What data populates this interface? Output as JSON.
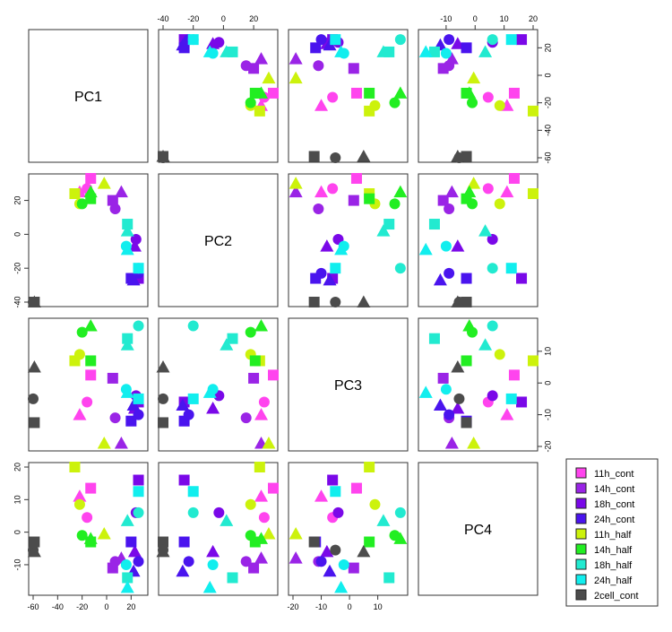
{
  "chart_data": {
    "type": "scatter",
    "title": "",
    "variables": [
      "PC1",
      "PC2",
      "PC3",
      "PC4"
    ],
    "ranges": {
      "PC1": [
        -60,
        30
      ],
      "PC2": [
        -40,
        33
      ],
      "PC3": [
        -20,
        19
      ],
      "PC4": [
        -18,
        20
      ]
    },
    "ticks": {
      "PC1": [
        "-60",
        "-40",
        "-20",
        "0",
        "20"
      ],
      "PC2": [
        "-40",
        "-20",
        "0",
        "20"
      ],
      "PC3": [
        "-20",
        "-10",
        "0",
        "10"
      ],
      "PC4": [
        "-10",
        "0",
        "10",
        "20"
      ]
    },
    "legend": {
      "position": "right",
      "entries": [
        {
          "label": "11h_cont",
          "color": "#ff44ee"
        },
        {
          "label": "14h_cont",
          "color": "#9a24e6"
        },
        {
          "label": "18h_cont",
          "color": "#7a08e8"
        },
        {
          "label": "24h_cont",
          "color": "#4a14ee"
        },
        {
          "label": "11h_half",
          "color": "#ccf20c"
        },
        {
          "label": "14h_half",
          "color": "#22ee22"
        },
        {
          "label": "18h_half",
          "color": "#22ead0"
        },
        {
          "label": "24h_half",
          "color": "#11eeee"
        },
        {
          "label": "2cell_cont",
          "color": "#4c4c4c"
        }
      ]
    },
    "series": [
      {
        "name": "11h_cont",
        "points": [
          {
            "shape": "square",
            "PC1": -13,
            "PC2": 33,
            "PC3": 2.5,
            "PC4": 13.5
          },
          {
            "shape": "circle",
            "PC1": -16,
            "PC2": 27,
            "PC3": -6,
            "PC4": 4.5
          },
          {
            "shape": "triangle",
            "PC1": -22,
            "PC2": 25,
            "PC3": -10,
            "PC4": 11
          }
        ]
      },
      {
        "name": "14h_cont",
        "points": [
          {
            "shape": "square",
            "PC1": 5,
            "PC2": 20,
            "PC3": 1.5,
            "PC4": -11
          },
          {
            "shape": "circle",
            "PC1": 7,
            "PC2": 15,
            "PC3": -11,
            "PC4": -9
          },
          {
            "shape": "triangle",
            "PC1": 12,
            "PC2": 25,
            "PC3": -19,
            "PC4": -8
          }
        ]
      },
      {
        "name": "18h_cont",
        "points": [
          {
            "shape": "square",
            "PC1": 26,
            "PC2": -26,
            "PC3": -6,
            "PC4": 16
          },
          {
            "shape": "circle",
            "PC1": 24,
            "PC2": -3,
            "PC3": -4,
            "PC4": 6
          },
          {
            "shape": "triangle",
            "PC1": 23,
            "PC2": -7,
            "PC3": -8,
            "PC4": -6
          }
        ]
      },
      {
        "name": "24h_cont",
        "points": [
          {
            "shape": "square",
            "PC1": 20,
            "PC2": -26,
            "PC3": -12,
            "PC4": -3
          },
          {
            "shape": "circle",
            "PC1": 26,
            "PC2": -23,
            "PC3": -10,
            "PC4": -9
          },
          {
            "shape": "triangle",
            "PC1": 22,
            "PC2": -27,
            "PC3": -7,
            "PC4": -12
          }
        ]
      },
      {
        "name": "11h_half",
        "points": [
          {
            "shape": "square",
            "PC1": -26,
            "PC2": 24,
            "PC3": 7,
            "PC4": 20
          },
          {
            "shape": "circle",
            "PC1": -22,
            "PC2": 18,
            "PC3": 9,
            "PC4": 8.5
          },
          {
            "shape": "triangle",
            "PC1": -2,
            "PC2": 30,
            "PC3": -19,
            "PC4": -0.5
          }
        ]
      },
      {
        "name": "14h_half",
        "points": [
          {
            "shape": "square",
            "PC1": -13,
            "PC2": 21,
            "PC3": 7,
            "PC4": -3
          },
          {
            "shape": "circle",
            "PC1": -20,
            "PC2": 18,
            "PC3": 16,
            "PC4": -1
          },
          {
            "shape": "triangle",
            "PC1": -13,
            "PC2": 25,
            "PC3": 18,
            "PC4": -2
          }
        ]
      },
      {
        "name": "18h_half",
        "points": [
          {
            "shape": "square",
            "PC1": 17,
            "PC2": 6,
            "PC3": 14,
            "PC4": -14
          },
          {
            "shape": "circle",
            "PC1": 26,
            "PC2": -20,
            "PC3": 18,
            "PC4": 6
          },
          {
            "shape": "triangle",
            "PC1": 17,
            "PC2": 2,
            "PC3": 12,
            "PC4": 3.5
          }
        ]
      },
      {
        "name": "24h_half",
        "points": [
          {
            "shape": "square",
            "PC1": 26,
            "PC2": -20,
            "PC3": -5,
            "PC4": 12.5
          },
          {
            "shape": "circle",
            "PC1": 16,
            "PC2": -7,
            "PC3": -2,
            "PC4": -10
          },
          {
            "shape": "triangle",
            "PC1": 17,
            "PC2": -9,
            "PC3": -3,
            "PC4": -17
          }
        ]
      },
      {
        "name": "2cell_cont",
        "points": [
          {
            "shape": "square",
            "PC1": -59,
            "PC2": -40,
            "PC3": -12.5,
            "PC4": -3
          },
          {
            "shape": "circle",
            "PC1": -60,
            "PC2": -40,
            "PC3": -5,
            "PC4": -5.5
          },
          {
            "shape": "triangle",
            "PC1": -59,
            "PC2": -40,
            "PC3": 5,
            "PC4": -6
          }
        ]
      }
    ]
  }
}
